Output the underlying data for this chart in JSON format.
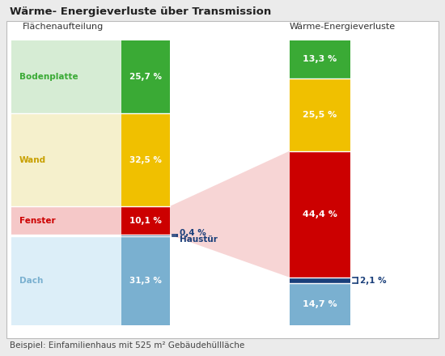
{
  "title": "Wärme- Energieverluste über Transmission",
  "footnote": "Beispiel: Einfamilienhaus mit 525 m² Gebäudehüllläche",
  "footnote2": "Beispiel: Einfamilienhaus mit 525 m² Gebäudehüllläche",
  "left_header": "Flächenaufteilung",
  "right_header": "Wärme-Energieverluste",
  "left_segments": [
    {
      "label": "Bodenplatte",
      "value": "25,7 %",
      "bar_color": "#3aaa35",
      "bg_color": "#d6ecd4",
      "label_color": "#3aaa35"
    },
    {
      "label": "Wand",
      "value": "32,5 %",
      "bar_color": "#f0c000",
      "bg_color": "#f5f0cc",
      "label_color": "#c8a000"
    },
    {
      "label": "Fenster",
      "value": "10,1 %",
      "bar_color": "#cc0000",
      "bg_color": "#f5c8c8",
      "label_color": "#cc0000"
    },
    {
      "label": "Dach",
      "value": "31,3 %",
      "bar_color": "#7ab0d0",
      "bg_color": "#dceef8",
      "label_color": "#7ab0d0"
    }
  ],
  "haustuer_value": "0,4 %",
  "haustuer_label": "Haustür",
  "haustuer_color": "#1a3f7a",
  "right_segments": [
    {
      "value": "13,3 %",
      "bar_color": "#3aaa35"
    },
    {
      "value": "25,5 %",
      "bar_color": "#f0c000"
    },
    {
      "value": "44,4 %",
      "bar_color": "#cc0000"
    },
    {
      "value": "14,7 %",
      "bar_color": "#7ab0d0"
    }
  ],
  "right_extra_label": "2,1 %",
  "right_extra_color": "#1a3f7a",
  "funnel_color": "#f5c8c8",
  "border_color": "#bbbbbb",
  "background_color": "#ffffff",
  "outer_bg": "#ebebeb",
  "left_pcts": [
    25.7,
    32.5,
    10.1,
    31.3,
    0.4
  ],
  "right_pcts": [
    13.3,
    25.5,
    44.4,
    14.7,
    2.1
  ]
}
